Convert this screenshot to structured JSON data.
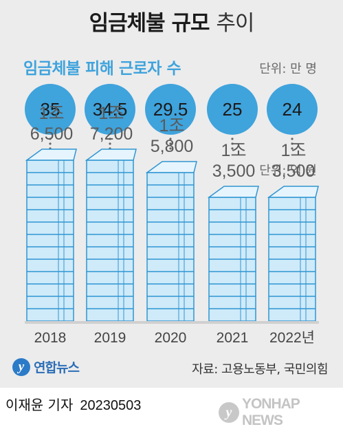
{
  "title": {
    "main": "임금체불 규모",
    "light": "추이"
  },
  "subtitle_workers": "임금체불 피해 근로자 수",
  "unit_workers": "단위: 만 명",
  "unit_wages": "단위: 억 원",
  "source": "자료: 고용노동부, 국민의힘",
  "agency_logo": "연합뉴스",
  "agency_logo_mark": "y",
  "byline": {
    "reporter": "이재윤 기자",
    "date": "20230503"
  },
  "watermark": {
    "mark": "y",
    "text": "YONHAP NEWS"
  },
  "colors": {
    "circle": "#3fa3dc",
    "stack_fill": "#cfeaf9",
    "stack_stroke": "#2f95d2",
    "panel": "#ececec"
  },
  "chart_data": [
    {
      "type": "bar",
      "title": "임금체불 피해 근로자 수",
      "unit": "만 명",
      "categories": [
        "2018",
        "2019",
        "2020",
        "2021",
        "2022년"
      ],
      "values": [
        35,
        34.5,
        29.5,
        25,
        24
      ],
      "labels": [
        "35",
        "34.5",
        "29.5",
        "25",
        "24"
      ]
    },
    {
      "type": "bar",
      "unit": "억 원",
      "categories": [
        "2018",
        "2019",
        "2020",
        "2021",
        "2022년"
      ],
      "values": [
        16500,
        17200,
        15800,
        13500,
        13500
      ],
      "labels": [
        [
          "1조",
          "6,500"
        ],
        [
          "1조",
          "7,200"
        ],
        [
          "1조",
          "5,800"
        ],
        [
          "1조",
          "3,500"
        ],
        [
          "1조",
          "3,500"
        ]
      ]
    }
  ]
}
